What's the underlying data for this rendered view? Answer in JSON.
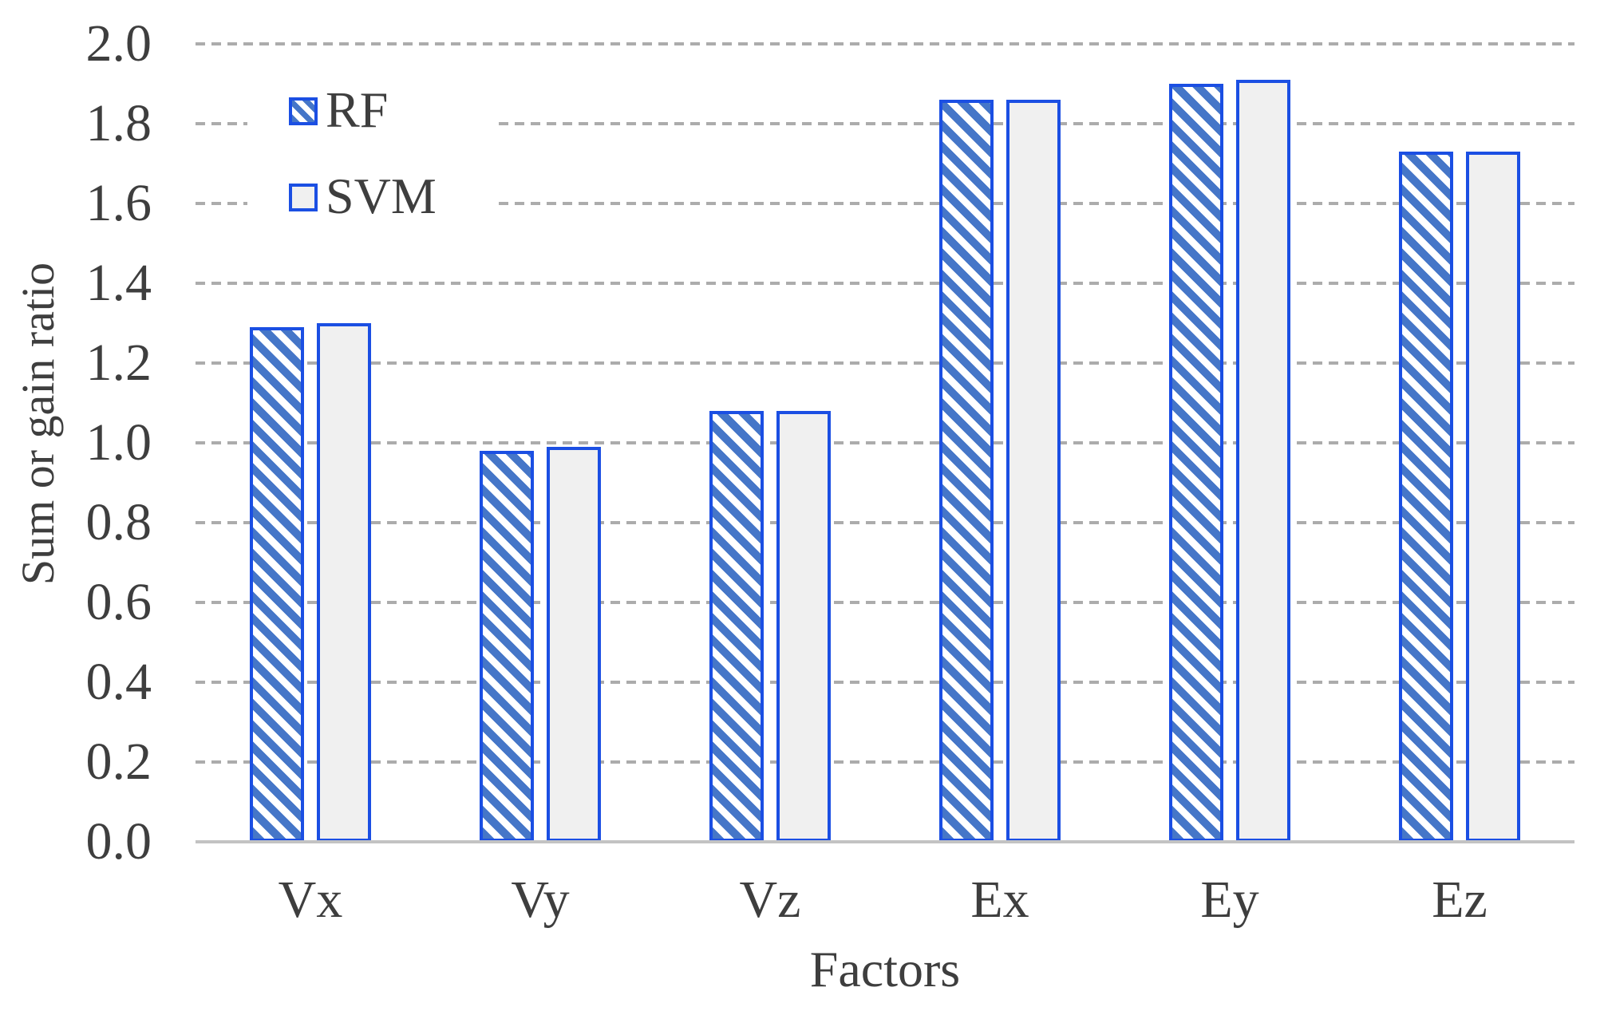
{
  "chart_data": {
    "type": "bar",
    "title": "",
    "categories": [
      "Vx",
      "Vy",
      "Vz",
      "Ex",
      "Ey",
      "Ez"
    ],
    "series": [
      {
        "name": "RF",
        "style": "hatched",
        "values": [
          1.29,
          0.98,
          1.08,
          1.86,
          1.9,
          1.73
        ]
      },
      {
        "name": "SVM",
        "style": "filled",
        "values": [
          1.3,
          0.99,
          1.08,
          1.86,
          1.91,
          1.73
        ]
      }
    ],
    "xlabel": "Factors",
    "ylabel": "Sum or gain ratio",
    "ylim": [
      0.0,
      2.0
    ],
    "ytick_step": 0.2,
    "ytick_labels": [
      "0.0",
      "0.2",
      "0.4",
      "0.6",
      "0.8",
      "1.0",
      "1.2",
      "1.4",
      "1.6",
      "1.8",
      "2.0"
    ],
    "grid": "horizontal-dashed",
    "legend_position": "upper-left-inside"
  },
  "colors": {
    "bar_border": "#1b4fe3",
    "hatch_fill": "#4576c8",
    "svm_fill": "#f0f0f0",
    "gridline": "#acacac",
    "axis_line": "#c3c3c3",
    "text": "#3e3e3e",
    "background": "#ffffff"
  }
}
